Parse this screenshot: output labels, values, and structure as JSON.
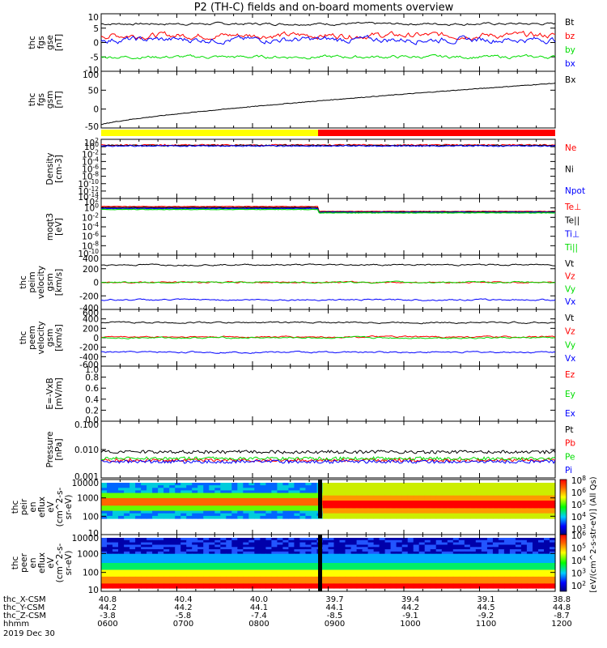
{
  "title": "P2 (TH-C) fields and on-board moments overview",
  "footer": {
    "rows": [
      {
        "label": "thc_X-CSM",
        "values": [
          "40.8",
          "40.4",
          "40.0",
          "39.7",
          "39.4",
          "39.1",
          "38.8"
        ]
      },
      {
        "label": "thc_Y-CSM",
        "values": [
          "44.2",
          "44.2",
          "44.1",
          "44.1",
          "44.2",
          "44.5",
          "44.8"
        ]
      },
      {
        "label": "thc_Z-CSM",
        "values": [
          "-3.8",
          "-5.8",
          "-7.4",
          "-8.5",
          "-9.1",
          "-9.2",
          "-8.7"
        ]
      },
      {
        "label": "hhmm",
        "values": [
          "0600",
          "0700",
          "0800",
          "0900",
          "1000",
          "1100",
          "1200"
        ]
      }
    ],
    "date": "2019 Dec 30"
  },
  "colorbar_label": "[eV/(cm^2-s-str-eV)] (All Qs)",
  "colorbar_ticks": [
    "10^8",
    "10^7",
    "10^6",
    "10^5",
    "10^4",
    "10^3",
    "10^2"
  ],
  "colors": {
    "black": "#000000",
    "red": "#ff0000",
    "green": "#00dd00",
    "blue": "#0000ff",
    "yellow": "#ffff00"
  },
  "chart_data": [
    {
      "type": "line",
      "id": "fgs",
      "ylabel": [
        "thc",
        "fgs",
        "gse",
        "[nT]"
      ],
      "yticks": [
        "10",
        "5",
        "0",
        "-5",
        "-10"
      ],
      "ylim": [
        -10,
        10
      ],
      "series": [
        {
          "name": "Bt",
          "color": "black",
          "base": 6.5,
          "noise": 0.6
        },
        {
          "name": "bz",
          "color": "red",
          "base": 2.5,
          "noise": 1.5
        },
        {
          "name": "by",
          "color": "green",
          "base": -5,
          "noise": 0.8
        },
        {
          "name": "bx",
          "color": "blue",
          "base": 1,
          "noise": 1.5
        }
      ]
    },
    {
      "type": "line",
      "id": "fgs-gsm",
      "ylabel": [
        "thc",
        "fgs",
        "gsm",
        "[nT]"
      ],
      "yticks": [
        "100",
        "50",
        "0",
        "-50"
      ],
      "ylim": [
        -70,
        110
      ],
      "series": [
        {
          "name": "Bx",
          "color": "black",
          "start": -60,
          "end": 72
        }
      ]
    },
    {
      "type": "line",
      "id": "density",
      "ylabel": [
        "Density",
        "[cm-3]"
      ],
      "yticks": [
        "10^2",
        "10^0",
        "10^-2",
        "10^-4",
        "10^-6",
        "10^-8",
        "10^-10",
        "10^-12",
        "10^-14"
      ],
      "series": [
        {
          "name": "Ne",
          "color": "red"
        },
        {
          "name": "Ni",
          "color": "black"
        },
        {
          "name": "Npot",
          "color": "blue"
        }
      ]
    },
    {
      "type": "line",
      "id": "temperature",
      "ylabel": [
        "moqt3",
        "[eV]"
      ],
      "yticks": [
        "10^2",
        "10^0",
        "10^-2",
        "10^-4",
        "10^-6",
        "10^-8",
        "10^-10"
      ],
      "series": [
        {
          "name": "Te⊥",
          "color": "red"
        },
        {
          "name": "Te||",
          "color": "black"
        },
        {
          "name": "Ti⊥",
          "color": "blue"
        },
        {
          "name": "Ti||",
          "color": "green"
        }
      ]
    },
    {
      "type": "line",
      "id": "peim",
      "ylabel": [
        "thc",
        "peim",
        "velocity",
        "gsm",
        "[km/s]"
      ],
      "yticks": [
        "400",
        "200",
        "0",
        "-200",
        "-400"
      ],
      "ylim": [
        -450,
        450
      ],
      "series": [
        {
          "name": "Vt",
          "color": "black",
          "base": 290
        },
        {
          "name": "Vz",
          "color": "red",
          "base": 0
        },
        {
          "name": "Vy",
          "color": "green",
          "base": 0
        },
        {
          "name": "Vx",
          "color": "blue",
          "base": -290
        }
      ]
    },
    {
      "type": "line",
      "id": "peem",
      "ylabel": [
        "thc",
        "peem",
        "velocity",
        "gsm",
        "[km/s]"
      ],
      "yticks": [
        "600",
        "400",
        "200",
        "0",
        "-200",
        "-400",
        "-600"
      ],
      "ylim": [
        -650,
        650
      ],
      "series": [
        {
          "name": "Vt",
          "color": "black",
          "base": 350
        },
        {
          "name": "Vz",
          "color": "red",
          "base": 20
        },
        {
          "name": "Vy",
          "color": "green",
          "base": 0
        },
        {
          "name": "Vx",
          "color": "blue",
          "base": -330
        }
      ]
    },
    {
      "type": "line",
      "id": "efield",
      "ylabel": [
        "E=-VxB",
        "[mV/m]"
      ],
      "yticks": [
        "1.0",
        "0.8",
        "0.6",
        "0.4",
        "0.2",
        "0.0"
      ],
      "ylim": [
        0,
        1
      ],
      "series": [
        {
          "name": "Ez",
          "color": "red"
        },
        {
          "name": "Ey",
          "color": "green"
        },
        {
          "name": "Ex",
          "color": "blue"
        }
      ]
    },
    {
      "type": "line",
      "id": "pressure",
      "ylabel": [
        "Pressure",
        "[nPa]"
      ],
      "yticks": [
        "0.100",
        "0.010",
        "0.001"
      ],
      "series": [
        {
          "name": "Pt",
          "color": "black"
        },
        {
          "name": "Pb",
          "color": "red"
        },
        {
          "name": "Pe",
          "color": "green"
        },
        {
          "name": "Pi",
          "color": "blue"
        }
      ]
    },
    {
      "type": "heatmap",
      "id": "peir",
      "ylabel": [
        "thc",
        "peir",
        "en",
        "eflux",
        "eV",
        "(cm^2-s-",
        "sr-eV)"
      ],
      "yticks": [
        "10000",
        "1000",
        "100",
        "10"
      ]
    },
    {
      "type": "heatmap",
      "id": "peer",
      "ylabel": [
        "thc",
        "peer",
        "en",
        "eflux",
        "eV",
        "(cm^2-s-",
        "sr-eV)"
      ],
      "yticks": [
        "10000",
        "1000",
        "100",
        "10"
      ]
    }
  ]
}
